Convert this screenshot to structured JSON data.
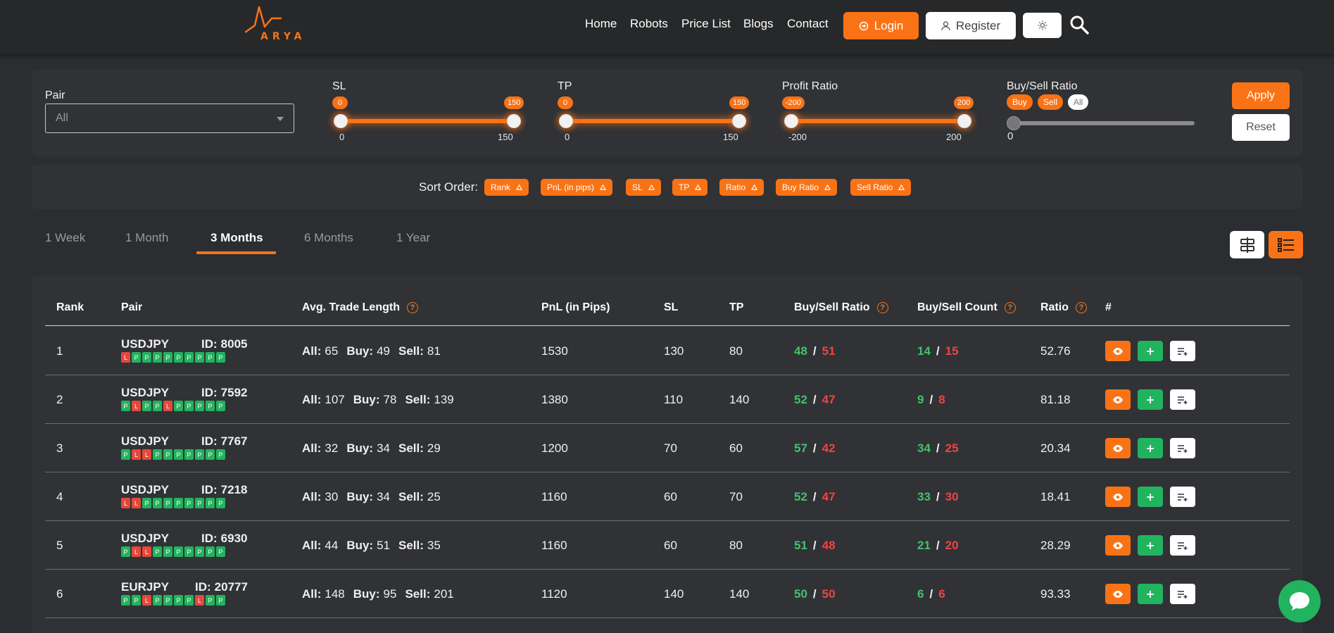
{
  "header": {
    "logo_text": "ARYA",
    "nav": [
      "Home",
      "Robots",
      "Price List",
      "Blogs",
      "Contact"
    ],
    "login_label": "Login",
    "register_label": "Register"
  },
  "filters": {
    "pair_label": "Pair",
    "pair_value": "All",
    "sl": {
      "label": "SL",
      "min": 0,
      "max": 150,
      "low": 0,
      "high": 150
    },
    "tp": {
      "label": "TP",
      "min": 0,
      "max": 150,
      "low": 0,
      "high": 150
    },
    "profit_ratio": {
      "label": "Profit Ratio",
      "min": -200,
      "max": 200,
      "low": -200,
      "high": 200
    },
    "buy_sell_ratio": {
      "label": "Buy/Sell Ratio",
      "options": [
        "Buy",
        "Sell",
        "All"
      ],
      "selected": "All",
      "value": 0
    },
    "apply_label": "Apply",
    "reset_label": "Reset"
  },
  "sort": {
    "label": "Sort Order:",
    "items": [
      "Rank",
      "PnL (in pips)",
      "SL",
      "TP",
      "Ratio",
      "Buy Ratio",
      "Sell Ratio"
    ]
  },
  "tabs": [
    "1 Week",
    "1 Month",
    "3 Months",
    "6 Months",
    "1 Year"
  ],
  "active_tab": "3 Months",
  "table": {
    "headers": [
      "Rank",
      "Pair",
      "Avg. Trade Length",
      "PnL (in Pips)",
      "SL",
      "TP",
      "Buy/Sell Ratio",
      "Buy/Sell Count",
      "Ratio",
      "#"
    ],
    "labels": {
      "all": "All:",
      "buy": "Buy:",
      "sell": "Sell:",
      "id": "ID:"
    },
    "rows": [
      {
        "rank": "1",
        "pair": "USDJPY",
        "id": "8005",
        "history": "LPPPPPPPPP",
        "all": "65",
        "buy": "49",
        "sell": "81",
        "pnl": "1530",
        "sl": "130",
        "tp": "80",
        "buy_ratio": "48",
        "sell_ratio": "51",
        "buy_count": "14",
        "sell_count": "15",
        "ratio": "52.76"
      },
      {
        "rank": "2",
        "pair": "USDJPY",
        "id": "7592",
        "history": "PLPPLPPPPP",
        "all": "107",
        "buy": "78",
        "sell": "139",
        "pnl": "1380",
        "sl": "110",
        "tp": "140",
        "buy_ratio": "52",
        "sell_ratio": "47",
        "buy_count": "9",
        "sell_count": "8",
        "ratio": "81.18"
      },
      {
        "rank": "3",
        "pair": "USDJPY",
        "id": "7767",
        "history": "PLLPPPPPPP",
        "all": "32",
        "buy": "34",
        "sell": "29",
        "pnl": "1200",
        "sl": "70",
        "tp": "60",
        "buy_ratio": "57",
        "sell_ratio": "42",
        "buy_count": "34",
        "sell_count": "25",
        "ratio": "20.34"
      },
      {
        "rank": "4",
        "pair": "USDJPY",
        "id": "7218",
        "history": "LLPPPPPPPP",
        "all": "30",
        "buy": "34",
        "sell": "25",
        "pnl": "1160",
        "sl": "60",
        "tp": "70",
        "buy_ratio": "52",
        "sell_ratio": "47",
        "buy_count": "33",
        "sell_count": "30",
        "ratio": "18.41"
      },
      {
        "rank": "5",
        "pair": "USDJPY",
        "id": "6930",
        "history": "PLLPPPPPPP",
        "all": "44",
        "buy": "51",
        "sell": "35",
        "pnl": "1160",
        "sl": "60",
        "tp": "80",
        "buy_ratio": "51",
        "sell_ratio": "48",
        "buy_count": "21",
        "sell_count": "20",
        "ratio": "28.29"
      },
      {
        "rank": "6",
        "pair": "EURJPY",
        "id": "20777",
        "history": "PPLPPPPLPP",
        "all": "148",
        "buy": "95",
        "sell": "201",
        "pnl": "1120",
        "sl": "140",
        "tp": "140",
        "buy_ratio": "50",
        "sell_ratio": "50",
        "buy_count": "6",
        "sell_count": "6",
        "ratio": "93.33"
      }
    ]
  },
  "colors": {
    "accent": "#f97316",
    "positive": "#22b35e",
    "negative": "#e5483b",
    "background": "#2b2d30",
    "card": "#303236"
  }
}
